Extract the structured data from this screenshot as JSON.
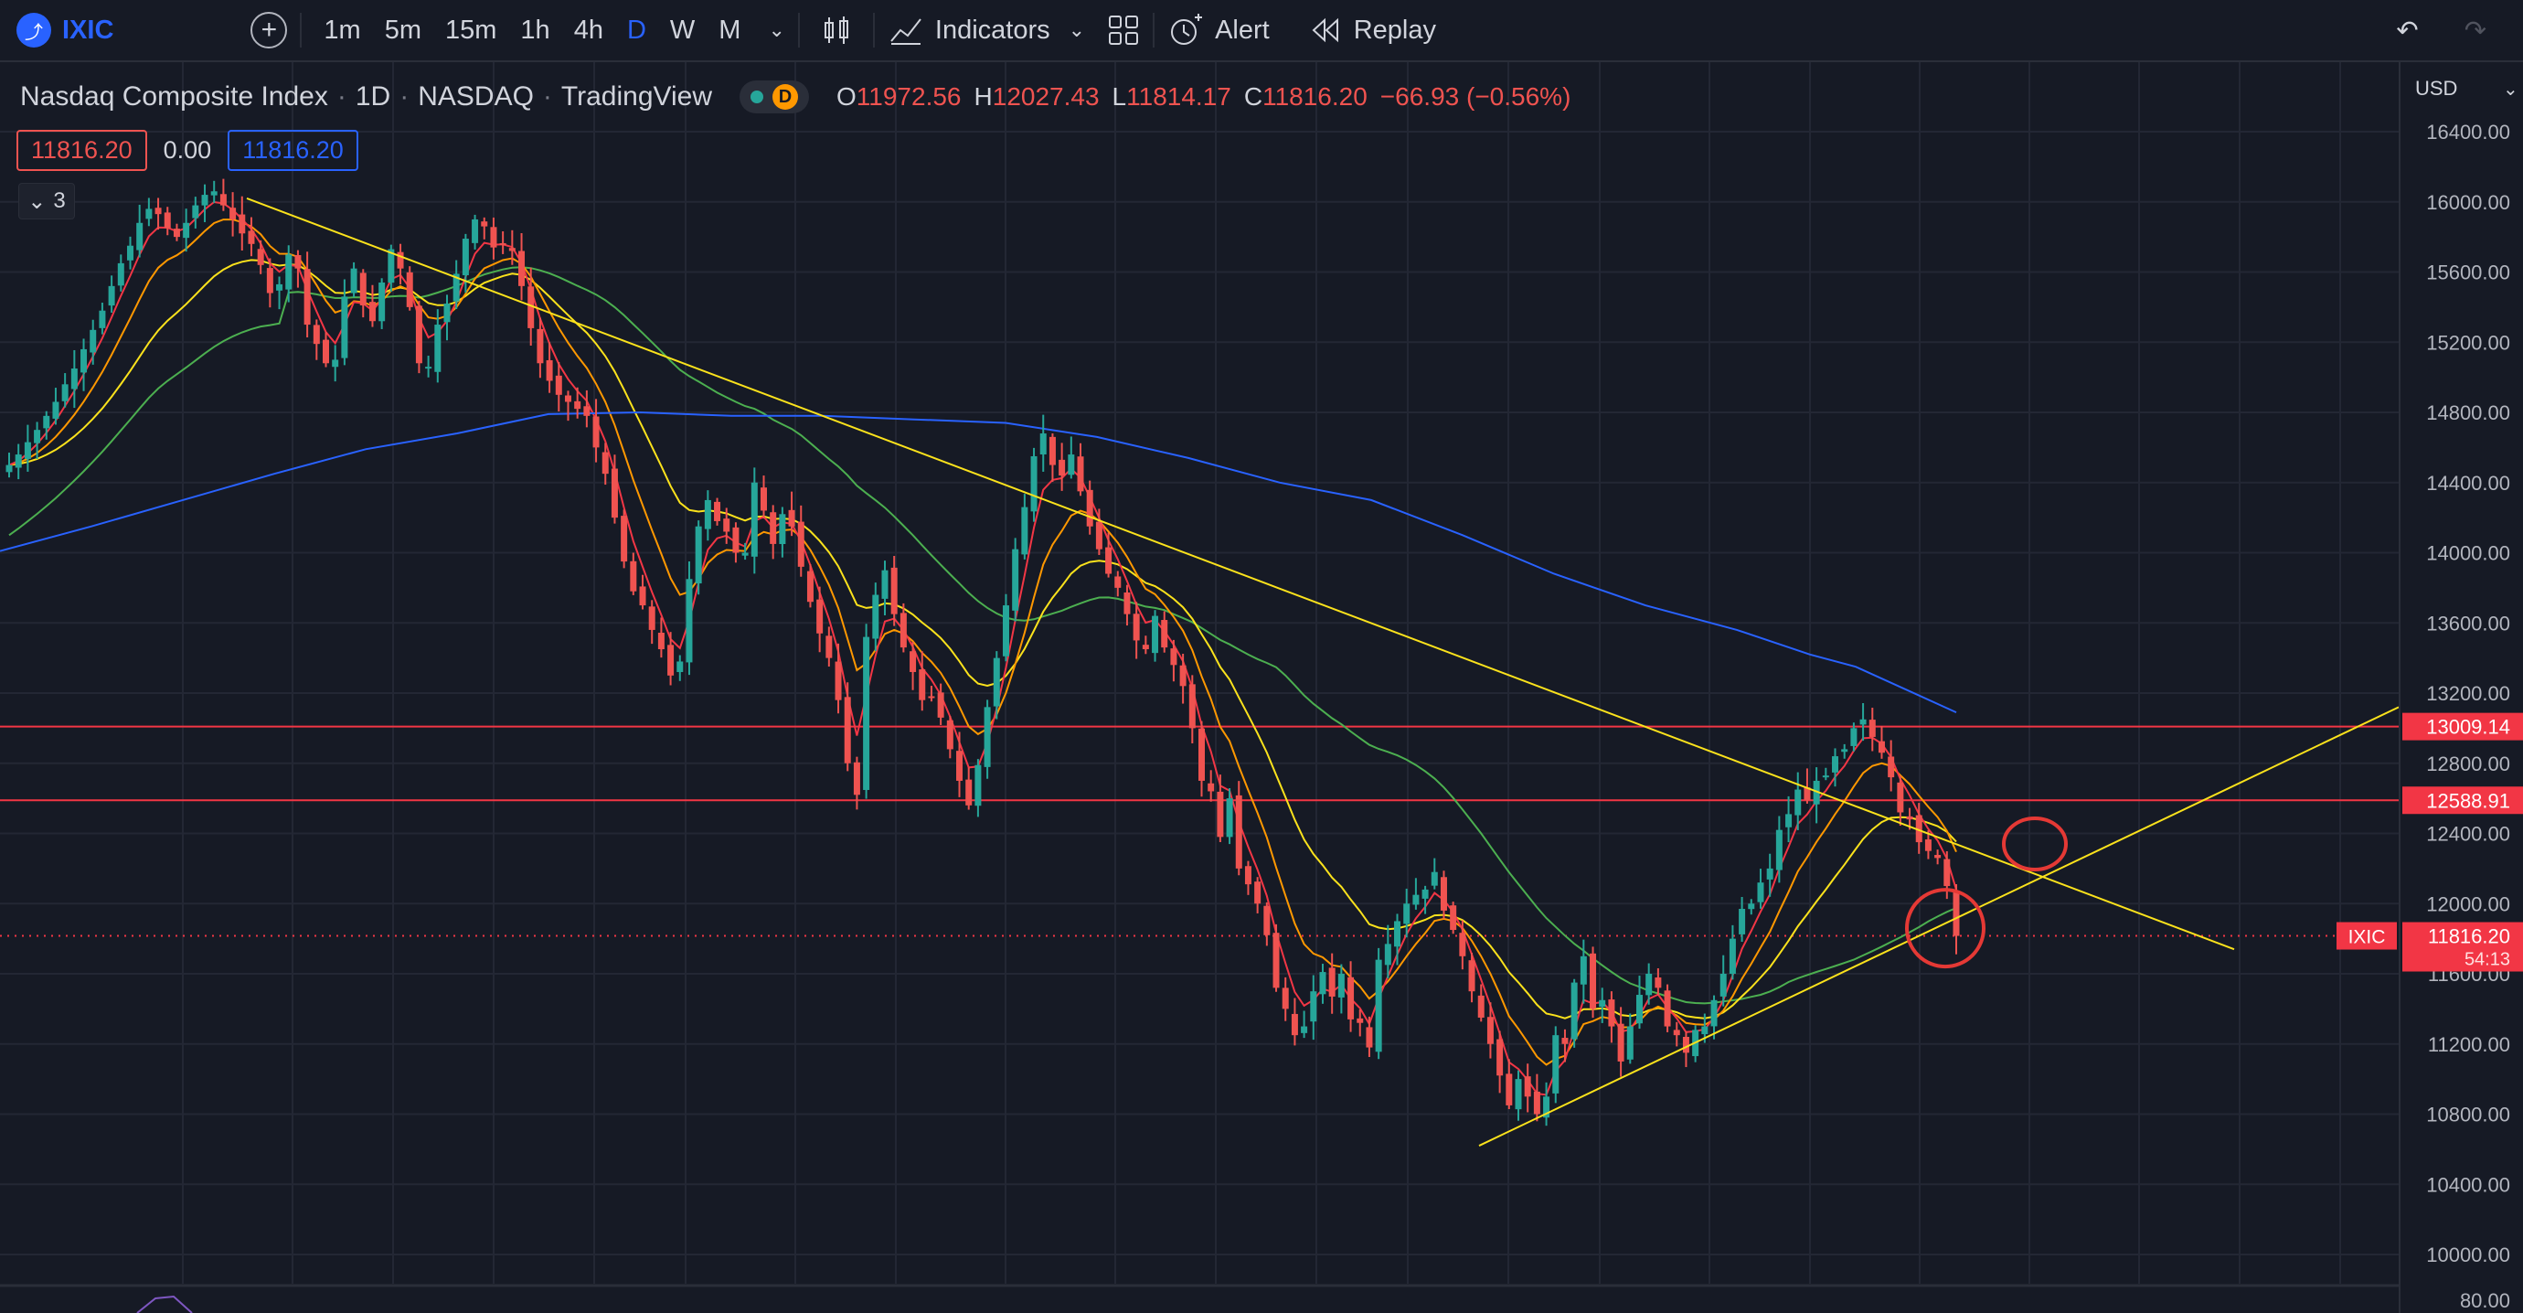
{
  "toolbar": {
    "symbol": "IXIC",
    "intervals": [
      "1m",
      "5m",
      "15m",
      "1h",
      "4h",
      "D",
      "W",
      "M"
    ],
    "active_interval": "D",
    "indicators_label": "Indicators",
    "alert_label": "Alert",
    "replay_label": "Replay"
  },
  "legend": {
    "title": "Nasdaq Composite Index",
    "timeframe": "1D",
    "exchange": "NASDAQ",
    "source": "TradingView",
    "status_letter": "D",
    "ohlc": {
      "o_label": "O",
      "o": "11972.56",
      "h_label": "H",
      "h": "12027.43",
      "l_label": "L",
      "l": "11814.17",
      "c_label": "C",
      "c": "11816.20",
      "change": "−66.93 (−0.56%)"
    },
    "row2": {
      "bid": "11816.20",
      "spread": "0.00",
      "ask": "11816.20"
    },
    "collapse_count": "3"
  },
  "price_scale": {
    "currency": "USD",
    "ticks": [
      "16400.00",
      "16000.00",
      "15600.00",
      "15200.00",
      "14800.00",
      "14400.00",
      "14000.00",
      "13600.00",
      "13200.00",
      "12800.00",
      "12400.00",
      "12000.00",
      "11600.00",
      "11200.00",
      "10800.00",
      "10400.00",
      "10000.00"
    ],
    "levels": [
      {
        "price": 13009.14,
        "label": "13009.14"
      },
      {
        "price": 12588.91,
        "label": "12588.91"
      }
    ],
    "last_price": {
      "symbol": "IXIC",
      "price": 11816.2,
      "label": "11816.20",
      "countdown": "54:13"
    },
    "lower_pane_tick": "80.00"
  },
  "colors": {
    "up": "#26a69a",
    "down": "#ef5350",
    "accent": "#2962ff",
    "ema_fast": "#f23645",
    "ema_mid": "#ff9800",
    "ema_slow": "#fbe21c",
    "sma_50": "#4caf50",
    "sma_200": "#2962ff",
    "trendline": "#fbe21c",
    "level": "#f23645"
  },
  "chart_data": {
    "type": "candlestick",
    "symbol": "IXIC",
    "ylim": [
      9850,
      16600
    ],
    "grid": true,
    "closes": [
      14500,
      14560,
      14630,
      14700,
      14780,
      14860,
      14960,
      15050,
      15160,
      15270,
      15380,
      15520,
      15650,
      15750,
      15880,
      15960,
      15930,
      15850,
      15800,
      15880,
      15980,
      16040,
      16060,
      15980,
      15900,
      15820,
      15760,
      15640,
      15480,
      15530,
      15700,
      15620,
      15300,
      15190,
      15080,
      15100,
      15460,
      15620,
      15410,
      15320,
      15540,
      15730,
      15620,
      15400,
      15080,
      15060,
      15300,
      15420,
      15590,
      15790,
      15900,
      15860,
      15740,
      15760,
      15720,
      15520,
      15280,
      15080,
      14980,
      14900,
      14860,
      14820,
      14780,
      14600,
      14450,
      14200,
      13950,
      13780,
      13700,
      13560,
      13450,
      13300,
      13380,
      13850,
      14150,
      14300,
      14180,
      14120,
      14000,
      14000,
      14400,
      14240,
      14050,
      14220,
      14150,
      13920,
      13720,
      13540,
      13400,
      13160,
      12800,
      12620,
      13520,
      13760,
      13900,
      13650,
      13460,
      13320,
      13160,
      13180,
      13060,
      12880,
      12700,
      12560,
      12790,
      13120,
      13400,
      13700,
      14020,
      14260,
      14550,
      14680,
      14500,
      14440,
      14560,
      14350,
      14150,
      14020,
      13880,
      13800,
      13650,
      13500,
      13450,
      13640,
      13460,
      13360,
      13240,
      13000,
      12700,
      12640,
      12380,
      12600,
      12200,
      12110,
      12000,
      11820,
      11520,
      11400,
      11250,
      11300,
      11500,
      11610,
      11470,
      11600,
      11340,
      11320,
      11180,
      11680,
      11770,
      11900,
      12000,
      12050,
      12080,
      12180,
      11960,
      11850,
      11700,
      11500,
      11350,
      11200,
      11020,
      10850,
      11000,
      10900,
      10800,
      10900,
      11250,
      11200,
      11550,
      11700,
      11400,
      11450,
      11300,
      11100,
      11300,
      11480,
      11600,
      11520,
      11300,
      11250,
      11150,
      11280,
      11300,
      11450,
      11600,
      11800,
      11970,
      12000,
      12120,
      12200,
      12420,
      12510,
      12650,
      12590,
      12700,
      12730,
      12840,
      12880,
      13000,
      13050,
      12950,
      12860,
      12720,
      12520,
      12480,
      12350,
      12300,
      12260,
      12100,
      11816
    ],
    "sma200_points": [
      [
        0,
        14010
      ],
      [
        100,
        14150
      ],
      [
        200,
        14300
      ],
      [
        300,
        14450
      ],
      [
        400,
        14590
      ],
      [
        500,
        14680
      ],
      [
        600,
        14790
      ],
      [
        700,
        14800
      ],
      [
        800,
        14780
      ],
      [
        900,
        14780
      ],
      [
        1000,
        14760
      ],
      [
        1100,
        14740
      ],
      [
        1200,
        14660
      ],
      [
        1300,
        14540
      ],
      [
        1400,
        14400
      ],
      [
        1500,
        14300
      ],
      [
        1600,
        14100
      ],
      [
        1700,
        13880
      ],
      [
        1800,
        13700
      ],
      [
        1900,
        13560
      ],
      [
        1980,
        13420
      ],
      [
        2030,
        13350
      ],
      [
        2140,
        13090
      ]
    ],
    "trendlines": {
      "down": [
        [
          270,
          16020
        ],
        [
          2080,
          12220
        ]
      ],
      "up": [
        [
          1618,
          10620
        ],
        [
          2624,
          13120
        ]
      ]
    },
    "annotations": {
      "circle_large": {
        "x": 2128,
        "price": 11860
      },
      "circle_small": {
        "x": 2226,
        "price": 12340
      }
    }
  }
}
